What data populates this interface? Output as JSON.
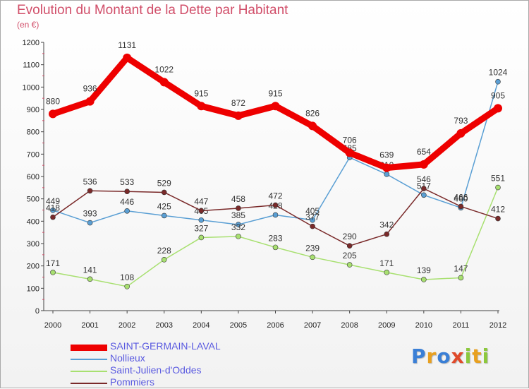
{
  "title": "Evolution du Montant de la Dette par Habitant",
  "subtitle": "(en €)",
  "logo": {
    "text": "Proxiti",
    "letters": [
      {
        "ch": "P",
        "color": "#3a7fd6"
      },
      {
        "ch": "r",
        "color": "#e8a020"
      },
      {
        "ch": "o",
        "color": "#3a7fd6"
      },
      {
        "ch": "x",
        "color": "#e04a2a"
      },
      {
        "ch": "i",
        "color": "#8cc83c"
      },
      {
        "ch": "t",
        "color": "#e8a020"
      },
      {
        "ch": "i",
        "color": "#8cc83c"
      }
    ]
  },
  "chart_data": {
    "type": "line",
    "x": [
      "2000",
      "2001",
      "2002",
      "2003",
      "2004",
      "2005",
      "2006",
      "2007",
      "2008",
      "2009",
      "2010",
      "2011",
      "2012"
    ],
    "ylim": [
      0,
      1200
    ],
    "yticks": [
      0,
      100,
      200,
      300,
      400,
      500,
      600,
      700,
      800,
      900,
      1000,
      1100,
      1200
    ],
    "grid": false,
    "legend": "bottom-left",
    "series": [
      {
        "name": "SAINT-GERMAIN-LAVAL",
        "color": "#ee0000",
        "values": [
          880,
          936,
          1131,
          1022,
          915,
          872,
          915,
          826,
          706,
          639,
          654,
          793,
          905
        ]
      },
      {
        "name": "Nollieux",
        "color": "#5a9fd4",
        "values": [
          449,
          393,
          446,
          425,
          405,
          385,
          428,
          405,
          685,
          610,
          517,
          460,
          1024
        ]
      },
      {
        "name": "Saint-Julien-d'Oddes",
        "color": "#a8e070",
        "values": [
          171,
          141,
          108,
          228,
          327,
          332,
          283,
          239,
          205,
          171,
          139,
          147,
          551
        ]
      },
      {
        "name": "Pommiers",
        "color": "#7a2a2a",
        "values": [
          418,
          536,
          533,
          529,
          447,
          458,
          472,
          377,
          290,
          342,
          546,
          466,
          412
        ]
      }
    ]
  }
}
